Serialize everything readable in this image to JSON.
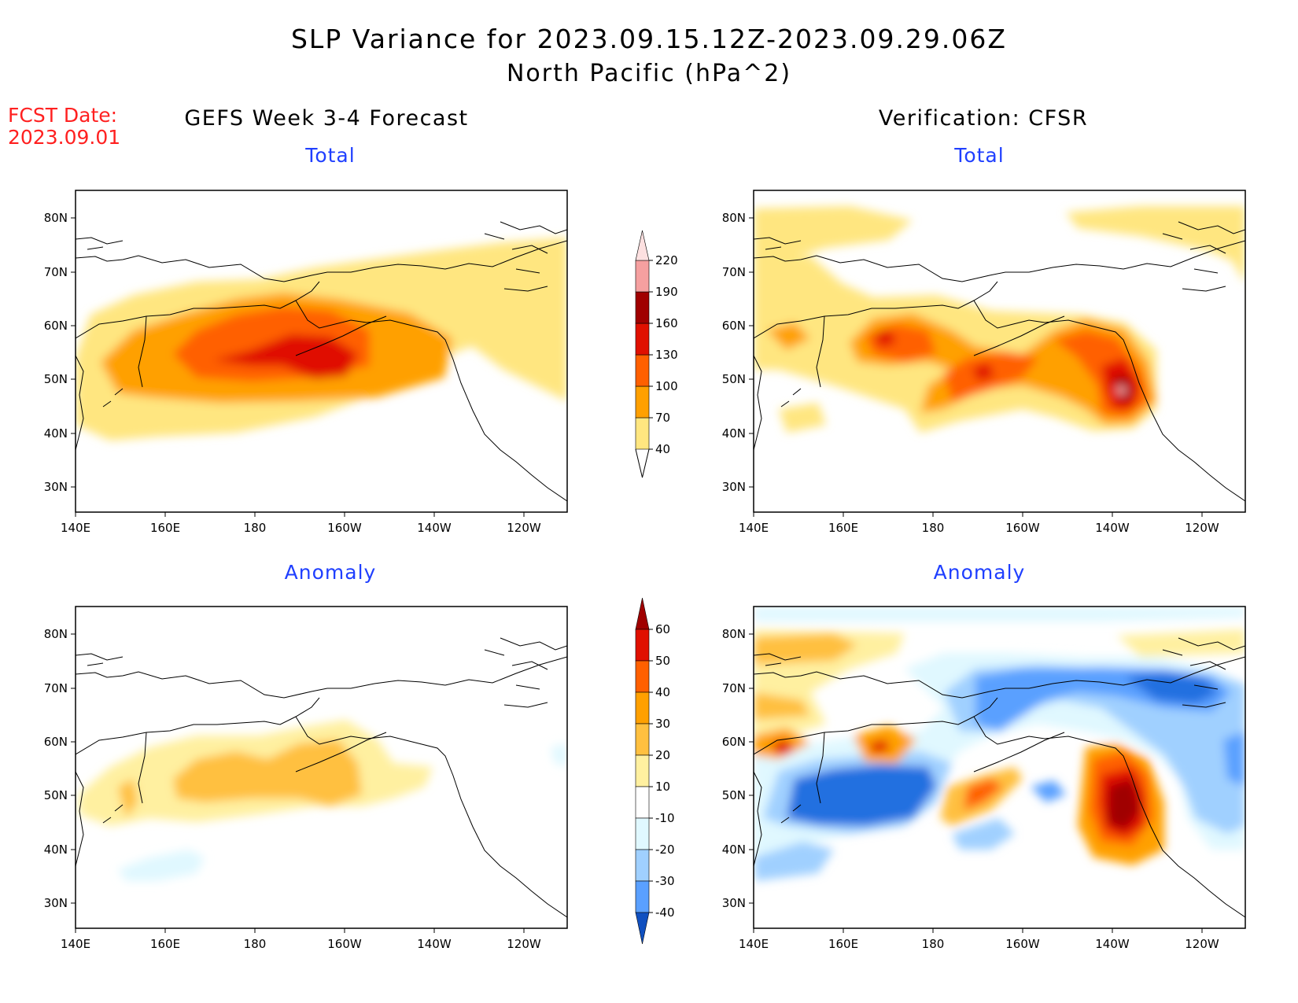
{
  "title": {
    "line1": "SLP Variance for 2023.09.15.12Z-2023.09.29.06Z",
    "line2": "North Pacific (hPa^2)"
  },
  "forecast_date": {
    "label": "FCST Date:",
    "value": "2023.09.01"
  },
  "columns": {
    "left": "GEFS Week 3-4 Forecast",
    "right": "Verification: CFSR"
  },
  "panel_titles": {
    "top_left": "Total",
    "top_right": "Total",
    "bottom_left": "Anomaly",
    "bottom_right": "Anomaly"
  },
  "axes": {
    "lon_ticks": [
      "140E",
      "160E",
      "180",
      "160W",
      "140W",
      "120W"
    ],
    "lat_ticks": [
      "80N",
      "70N",
      "60N",
      "50N",
      "40N",
      "30N"
    ]
  },
  "colorbars": {
    "total": {
      "levels": [
        "40",
        "70",
        "100",
        "130",
        "160",
        "190",
        "220"
      ],
      "colors": [
        "#ffe680",
        "#ffa000",
        "#ff6000",
        "#e01000",
        "#a00000",
        "#f5a0a0",
        "#fde0e0"
      ]
    },
    "anomaly": {
      "levels": [
        "60",
        "50",
        "40",
        "30",
        "20",
        "10",
        "-10",
        "-20",
        "-30",
        "-40"
      ],
      "colors": [
        "#a00000",
        "#e01000",
        "#ff6000",
        "#ffa000",
        "#ffc040",
        "#fff0a0",
        "#ffffff",
        "#e0f8ff",
        "#a0d0ff",
        "#5aa0ff",
        "#2070e0",
        "#1050c0"
      ]
    }
  }
}
